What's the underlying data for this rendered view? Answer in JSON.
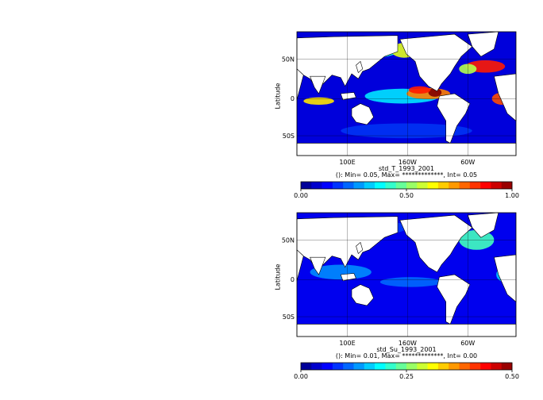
{
  "chart_data": [
    {
      "type": "heatmap",
      "title": "std_T_1993_2001",
      "subtitle": "(): Min= 0.05, Max= *************, Int= 0.05",
      "xlabel": "",
      "ylabel": "Latitude",
      "xticks": [
        "100E",
        "160W",
        "60W"
      ],
      "yticks": [
        "50N",
        "0",
        "50S"
      ],
      "colorbar": {
        "range": [
          0.0,
          1.0
        ],
        "ticks": [
          "0.00",
          "0.50",
          "1.00"
        ]
      },
      "description_values": {
        "background_ocean_level": 0.1,
        "equatorial_pacific_max": 1.0,
        "gulf_stream_max": 0.9,
        "kuroshio_max": 0.8
      },
      "colors": {
        "land": "#ffffff",
        "coast": "#000000"
      }
    },
    {
      "type": "heatmap",
      "title": "std_Su_1993_2001",
      "subtitle": "(): Min= 0.01, Max= *************, Int= 0.00",
      "xlabel": "",
      "ylabel": "Latitude",
      "xticks": [
        "100E",
        "160W",
        "60W"
      ],
      "yticks": [
        "50N",
        "0",
        "50S"
      ],
      "colorbar": {
        "range": [
          0.0,
          0.5
        ],
        "ticks": [
          "0.00",
          "0.25",
          "0.50"
        ]
      },
      "description_values": {
        "background_ocean_level": 0.06,
        "north_atlantic_max": 0.25,
        "tropical_pacific_level": 0.12
      },
      "colors": {
        "land": "#ffffff",
        "coast": "#000000"
      }
    }
  ]
}
